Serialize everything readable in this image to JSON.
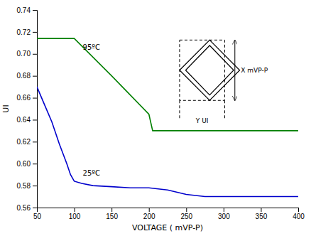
{
  "chart_data": {
    "type": "line",
    "title": "",
    "xlabel": "VOLTAGE ( mVP-P)",
    "ylabel": "UI",
    "xlim": [
      50,
      400
    ],
    "ylim": [
      0.56,
      0.74
    ],
    "xticks": [
      50,
      100,
      150,
      200,
      250,
      300,
      350,
      400
    ],
    "yticks": [
      0.56,
      0.58,
      {
        "value": 0.6,
        "label": "0.60"
      },
      0.62,
      0.64,
      0.66,
      0.68,
      {
        "value": 0.7,
        "label": "0.70"
      },
      0.72,
      0.74
    ],
    "grid": false,
    "series": [
      {
        "name": "95ºC",
        "color": "#008000",
        "x": [
          50,
          100,
          150,
          200,
          205,
          400
        ],
        "values": [
          0.714,
          0.714,
          0.68,
          0.645,
          0.63,
          0.63
        ]
      },
      {
        "name": "25ºC",
        "color": "#0000cc",
        "x": [
          50,
          60,
          70,
          80,
          90,
          95,
          100,
          110,
          125,
          150,
          175,
          200,
          225,
          250,
          275,
          300,
          350,
          400
        ],
        "values": [
          0.67,
          0.654,
          0.638,
          0.618,
          0.6,
          0.59,
          0.584,
          0.582,
          0.58,
          0.579,
          0.578,
          0.578,
          0.576,
          0.572,
          0.57,
          0.57,
          0.57,
          0.57
        ]
      }
    ],
    "annotations": [
      "X mVP-P",
      "Y UI"
    ]
  }
}
